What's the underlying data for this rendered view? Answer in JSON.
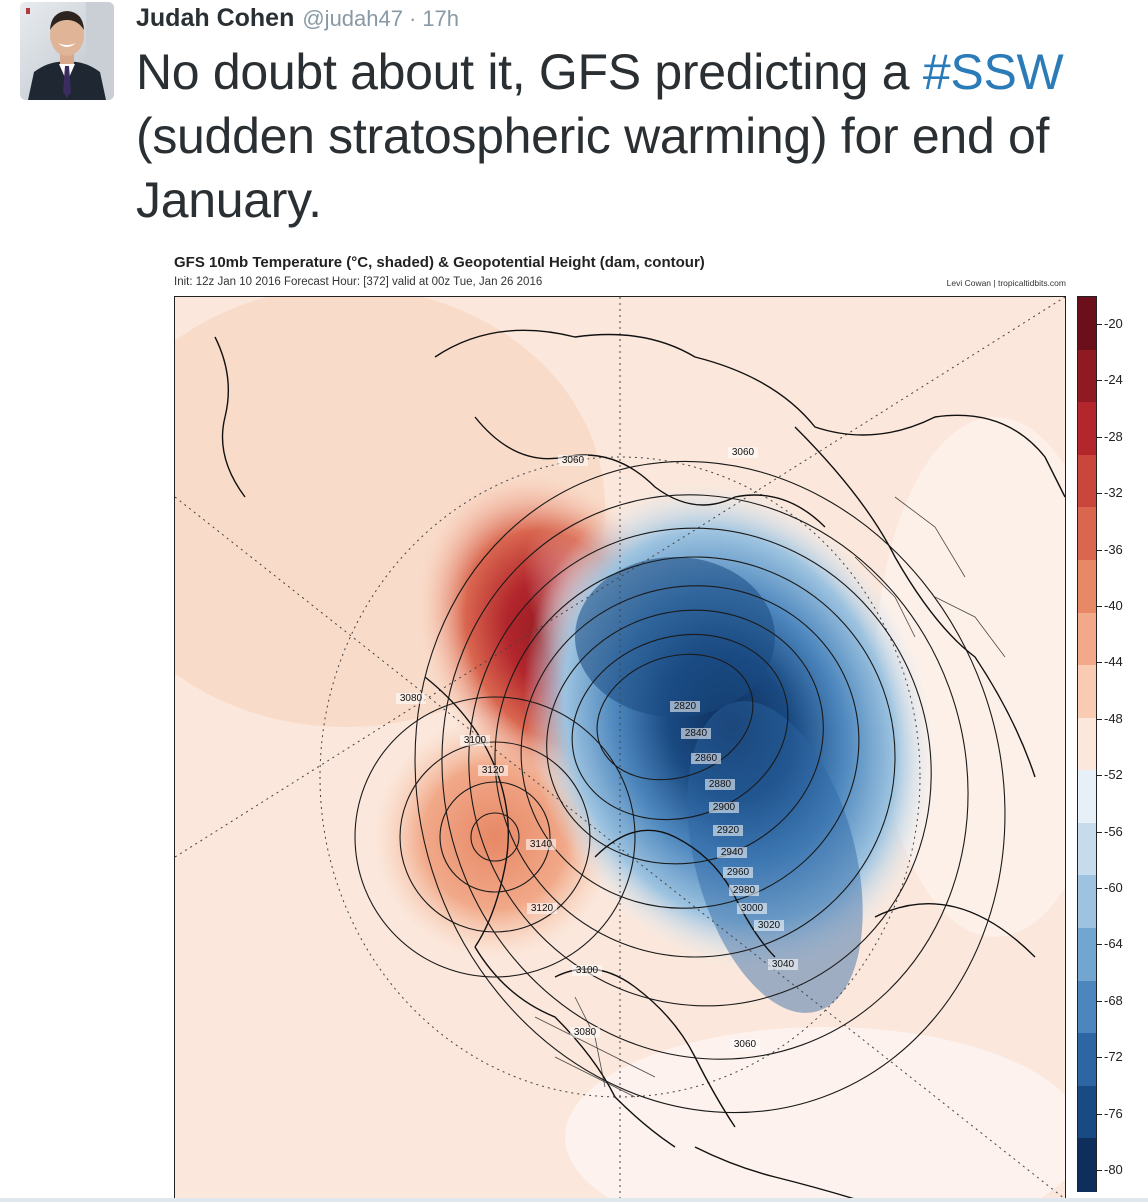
{
  "tweet": {
    "author_name": "Judah Cohen",
    "handle": "@judah47",
    "separator": "·",
    "time": "17h",
    "text_before": "No doubt about it, GFS predicting a ",
    "hashtag": "#SSW",
    "text_after": " (sudden stratospheric warming) for end of January."
  },
  "chart": {
    "title": "GFS 10mb Temperature (°C, shaded) & Geopotential Height (dam, contour)",
    "subtitle": "Init: 12z Jan 10 2016   Forecast Hour: [372]   valid at 00z Tue, Jan 26 2016",
    "credit": "Levi Cowan | tropicaltidbits.com"
  },
  "chart_data": {
    "type": "heatmap",
    "title": "GFS 10mb Temperature (°C, shaded) & Geopotential Height (dam, contour)",
    "colorbar": {
      "min": -80,
      "max": -20,
      "ticks": [
        -20,
        -24,
        -28,
        -32,
        -36,
        -40,
        -44,
        -48,
        -52,
        -56,
        -60,
        -64,
        -68,
        -72,
        -76,
        -80
      ],
      "colors": [
        "#6b0f1a",
        "#8f1a22",
        "#b2262c",
        "#c9463c",
        "#d9664f",
        "#e78866",
        "#f1a989",
        "#f8cbb2",
        "#fbe7db",
        "#e7f0f6",
        "#c6dcec",
        "#9dc3e0",
        "#72a6d0",
        "#4c86bd",
        "#2d66a3",
        "#1a4a82",
        "#0e2f5c"
      ]
    },
    "contour_labels": [
      {
        "value": 3060,
        "label": "3060"
      },
      {
        "value": 3060,
        "label": "3060"
      },
      {
        "value": 3080,
        "label": "3080"
      },
      {
        "value": 3100,
        "label": "3100"
      },
      {
        "value": 3120,
        "label": "3120"
      },
      {
        "value": 3140,
        "label": "3140"
      },
      {
        "value": 3120,
        "label": "3120"
      },
      {
        "value": 3100,
        "label": "3100"
      },
      {
        "value": 3080,
        "label": "3080"
      },
      {
        "value": 3060,
        "label": "3060"
      },
      {
        "value": 2820,
        "label": "2820"
      },
      {
        "value": 2840,
        "label": "2840"
      },
      {
        "value": 2860,
        "label": "2860"
      },
      {
        "value": 2880,
        "label": "2880"
      },
      {
        "value": 2900,
        "label": "2900"
      },
      {
        "value": 2920,
        "label": "2920"
      },
      {
        "value": 2940,
        "label": "2940"
      },
      {
        "value": 2960,
        "label": "2960"
      },
      {
        "value": 2980,
        "label": "2980"
      },
      {
        "value": 3000,
        "label": "3000"
      },
      {
        "value": 3020,
        "label": "3020"
      },
      {
        "value": 3040,
        "label": "3040"
      }
    ]
  }
}
